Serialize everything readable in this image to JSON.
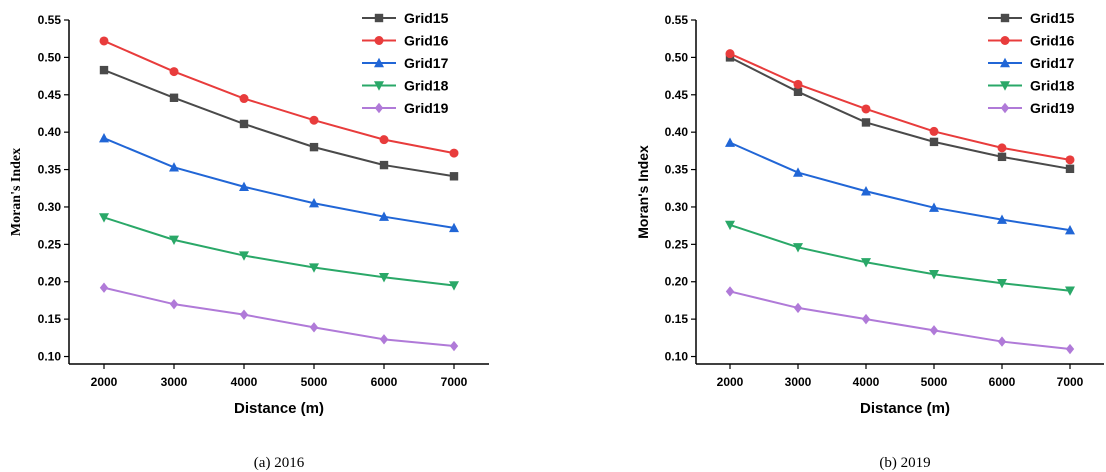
{
  "chart_data": [
    {
      "type": "line",
      "caption": "(a)  2016",
      "xlabel": "Distance (m)",
      "ylabel": "Moran's Index",
      "x": [
        2000,
        3000,
        4000,
        5000,
        6000,
        7000
      ],
      "xlim": [
        1500,
        7500
      ],
      "ylim": [
        0.09,
        0.55
      ],
      "yticks": [
        "0.10",
        "0.15",
        "0.20",
        "0.25",
        "0.30",
        "0.35",
        "0.40",
        "0.45",
        "0.50",
        "0.55"
      ],
      "xticks": [
        "2000",
        "3000",
        "4000",
        "5000",
        "6000",
        "7000"
      ],
      "legend_position": "top-right",
      "series": [
        {
          "name": "Grid15",
          "color": "#4a4a4a",
          "marker": "square",
          "values": [
            0.483,
            0.446,
            0.411,
            0.38,
            0.356,
            0.341
          ]
        },
        {
          "name": "Grid16",
          "color": "#e83c3c",
          "marker": "circle",
          "values": [
            0.522,
            0.481,
            0.445,
            0.416,
            0.39,
            0.372
          ]
        },
        {
          "name": "Grid17",
          "color": "#2166d6",
          "marker": "triangle-up",
          "values": [
            0.392,
            0.353,
            0.327,
            0.305,
            0.287,
            0.272
          ]
        },
        {
          "name": "Grid18",
          "color": "#2aa868",
          "marker": "triangle-down",
          "values": [
            0.286,
            0.256,
            0.235,
            0.219,
            0.206,
            0.195
          ]
        },
        {
          "name": "Grid19",
          "color": "#b07ad8",
          "marker": "diamond",
          "values": [
            0.192,
            0.17,
            0.156,
            0.139,
            0.123,
            0.114
          ]
        }
      ]
    },
    {
      "type": "line",
      "caption": "(b)  2019",
      "xlabel": "Distance (m)",
      "ylabel": "Moran's Index",
      "x": [
        2000,
        3000,
        4000,
        5000,
        6000,
        7000
      ],
      "xlim": [
        1500,
        7500
      ],
      "ylim": [
        0.09,
        0.55
      ],
      "yticks": [
        "0.10",
        "0.15",
        "0.20",
        "0.25",
        "0.30",
        "0.35",
        "0.40",
        "0.45",
        "0.50",
        "0.55"
      ],
      "xticks": [
        "2000",
        "3000",
        "4000",
        "5000",
        "6000",
        "7000"
      ],
      "legend_position": "top-right",
      "series": [
        {
          "name": "Grid15",
          "color": "#4a4a4a",
          "marker": "square",
          "values": [
            0.5,
            0.454,
            0.413,
            0.387,
            0.367,
            0.351
          ]
        },
        {
          "name": "Grid16",
          "color": "#e83c3c",
          "marker": "circle",
          "values": [
            0.505,
            0.464,
            0.431,
            0.401,
            0.379,
            0.363
          ]
        },
        {
          "name": "Grid17",
          "color": "#2166d6",
          "marker": "triangle-up",
          "values": [
            0.386,
            0.346,
            0.321,
            0.299,
            0.283,
            0.269
          ]
        },
        {
          "name": "Grid18",
          "color": "#2aa868",
          "marker": "triangle-down",
          "values": [
            0.276,
            0.246,
            0.226,
            0.21,
            0.198,
            0.188
          ]
        },
        {
          "name": "Grid19",
          "color": "#b07ad8",
          "marker": "diamond",
          "values": [
            0.187,
            0.165,
            0.15,
            0.135,
            0.12,
            0.11
          ]
        }
      ]
    }
  ]
}
